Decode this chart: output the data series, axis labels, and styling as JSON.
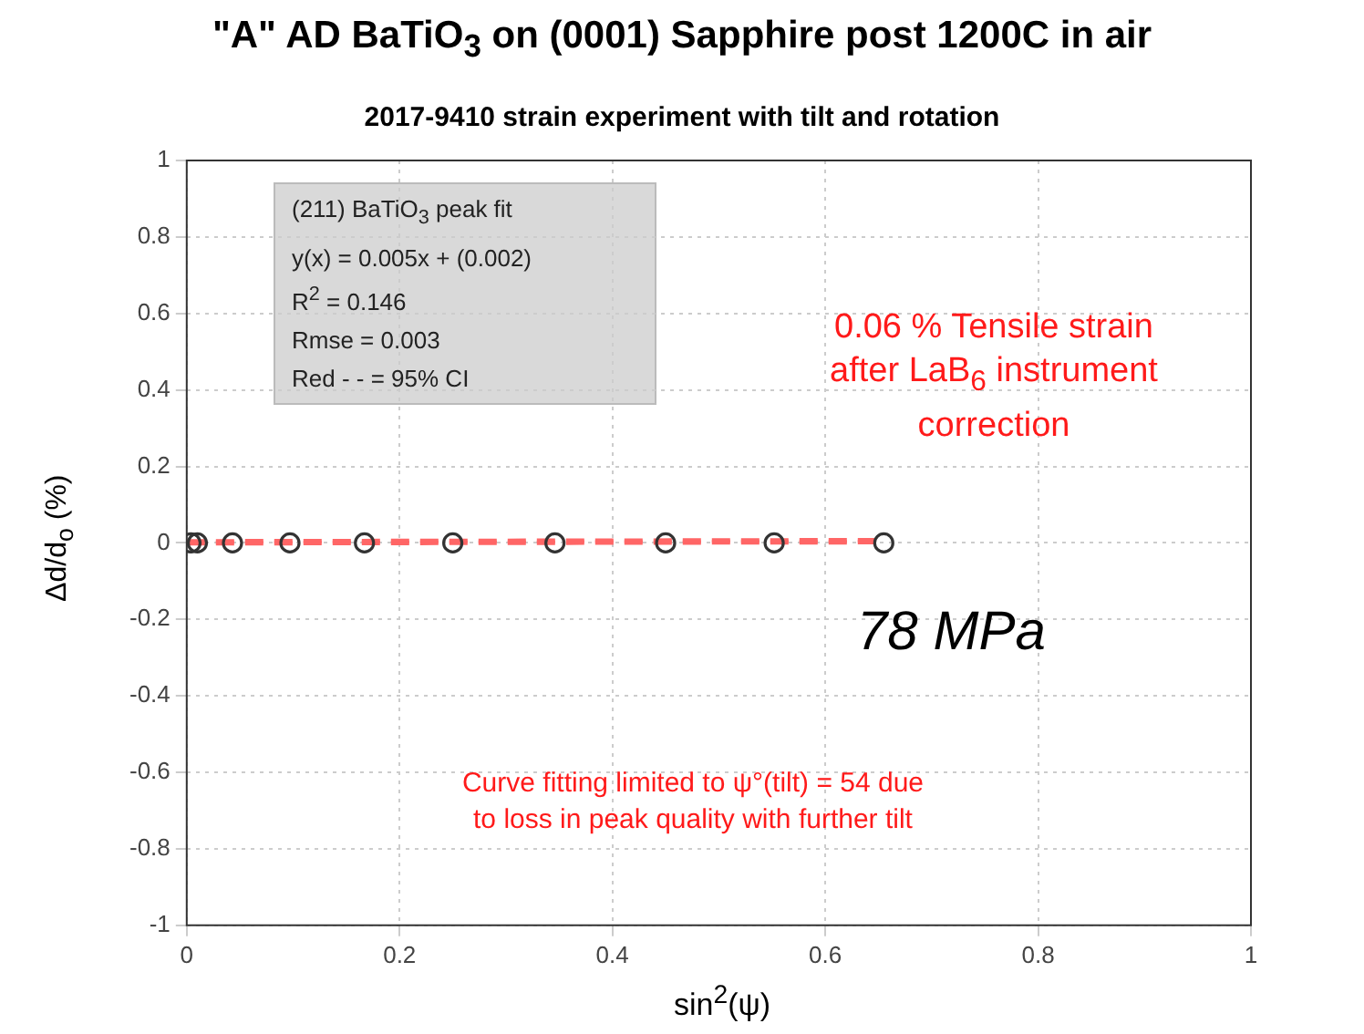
{
  "chart_data": {
    "type": "scatter",
    "title": "\"A\" AD BaTiO$_{3}$ on (0001) Sapphire post 1200C in air",
    "subtitle": "2017-9410 strain experiment with tilt and rotation",
    "xlabel": "sin$^{2}$(ψ)",
    "ylabel": "Δd/d$_{o}$ (%)",
    "annotations": [
      "(211) BaTiO$_{3}$ peak fit\ny(x) = 0.005x + (0.002)\nR$^{2}$ = 0.146\nRmse = 0.003\nRed - - = 95% CI",
      "0.06 % Tensile strain\nafter LaB$_{6}$ instrument\ncorrection",
      "78 MPa",
      "Curve fitting  limited to ψ°(tilt)  = 54 due\nto loss in peak quality with further tilt"
    ],
    "series": [
      {
        "color": "#333333",
        "marker": "circle",
        "x": [
          0.004,
          0.01,
          0.043,
          0.097,
          0.167,
          0.25,
          0.346,
          0.45,
          0.552,
          0.655
        ],
        "values": [
          0,
          0,
          0,
          0,
          0,
          0,
          0,
          0,
          0,
          0
        ]
      },
      {
        "type": "line",
        "color": "#ff6666",
        "line_style": "dashed",
        "marker": "none",
        "x": [
          0,
          0.655
        ],
        "values": [
          0.004,
          0.007
        ]
      },
      {
        "type": "line",
        "color": "#ff6666",
        "line_style": "dashed",
        "marker": "none",
        "x": [
          0,
          0.655
        ],
        "values": [
          -0.001,
          0.002
        ]
      }
    ],
    "xlim": [
      0,
      1
    ],
    "xticks": [
      0,
      0.2,
      0.4,
      0.6,
      0.8,
      1
    ],
    "ylim": [
      -1,
      1
    ],
    "yticks": [
      -1,
      -0.8,
      -0.6,
      -0.4,
      -0.2,
      0,
      0.2,
      0.4,
      0.6,
      0.8,
      1
    ],
    "grid": true,
    "legend": false
  }
}
